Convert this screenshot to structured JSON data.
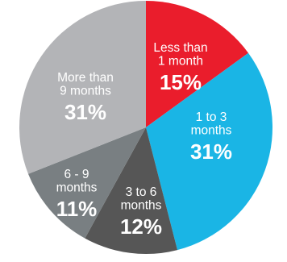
{
  "chart_data": {
    "type": "pie",
    "categories": [
      "Less than 1 month",
      "1 to 3 months",
      "3 to 6 months",
      "6 - 9 months",
      "More than 9 months"
    ],
    "values": [
      15,
      31,
      12,
      11,
      31
    ],
    "value_labels": [
      "15%",
      "31%",
      "12%",
      "11%",
      "31%"
    ],
    "label_lines": [
      [
        "Less than",
        "1 month"
      ],
      [
        "1 to 3",
        "months"
      ],
      [
        "3 to 6",
        "months"
      ],
      [
        "6 - 9",
        "months"
      ],
      [
        "More than",
        "9 months"
      ]
    ],
    "colors": [
      "#ea1d2c",
      "#1ab5e5",
      "#565656",
      "#797f82",
      "#b3b4b7"
    ],
    "start": "top, clockwise"
  }
}
